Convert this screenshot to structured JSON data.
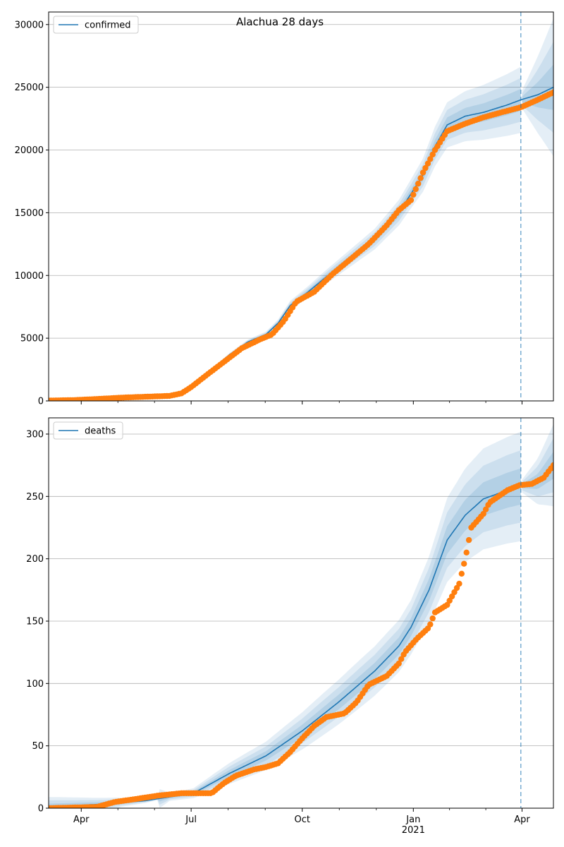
{
  "chart_data": [
    {
      "type": "line",
      "title": "Alachua 28 days",
      "legend": "confirmed",
      "legend_position": "top-left",
      "x_range_days": [
        0,
        418
      ],
      "x_ticks": [
        {
          "label": "Apr",
          "day": 27
        },
        {
          "label": "Jul",
          "day": 118
        },
        {
          "label": "Oct",
          "day": 210
        },
        {
          "label": "Jan",
          "day": 302
        },
        {
          "label": "Apr",
          "day": 392
        }
      ],
      "year_label": "2021",
      "ylim": [
        0,
        31000
      ],
      "y_ticks": [
        0,
        5000,
        10000,
        15000,
        20000,
        25000,
        30000
      ],
      "grid": true,
      "forecast_start_day": 391,
      "model_points": [
        [
          0,
          40
        ],
        [
          30,
          120
        ],
        [
          60,
          250
        ],
        [
          90,
          380
        ],
        [
          105,
          550
        ],
        [
          112,
          800
        ],
        [
          120,
          1350
        ],
        [
          135,
          2500
        ],
        [
          150,
          3700
        ],
        [
          165,
          4700
        ],
        [
          180,
          5300
        ],
        [
          190,
          6200
        ],
        [
          200,
          7600
        ],
        [
          215,
          8700
        ],
        [
          230,
          9900
        ],
        [
          250,
          11400
        ],
        [
          270,
          12900
        ],
        [
          290,
          15000
        ],
        [
          310,
          18000
        ],
        [
          320,
          20300
        ],
        [
          330,
          22000
        ],
        [
          345,
          22700
        ],
        [
          360,
          23000
        ],
        [
          380,
          23600
        ],
        [
          391,
          24000
        ],
        [
          405,
          24400
        ],
        [
          418,
          25000
        ]
      ],
      "band_spread": [
        [
          0,
          0
        ],
        [
          100,
          0.02
        ],
        [
          200,
          0.05
        ],
        [
          300,
          0.07
        ],
        [
          350,
          0.09
        ],
        [
          391,
          0.11
        ],
        [
          392,
          0.03
        ],
        [
          418,
          0.22
        ]
      ],
      "observed_points": [
        [
          0,
          30
        ],
        [
          20,
          60
        ],
        [
          40,
          150
        ],
        [
          60,
          260
        ],
        [
          80,
          330
        ],
        [
          100,
          400
        ],
        [
          110,
          600
        ],
        [
          118,
          1100
        ],
        [
          130,
          2000
        ],
        [
          145,
          3100
        ],
        [
          160,
          4200
        ],
        [
          175,
          4900
        ],
        [
          185,
          5300
        ],
        [
          195,
          6400
        ],
        [
          205,
          7900
        ],
        [
          220,
          8700
        ],
        [
          235,
          10100
        ],
        [
          250,
          11300
        ],
        [
          265,
          12500
        ],
        [
          280,
          14000
        ],
        [
          290,
          15200
        ],
        [
          300,
          16000
        ],
        [
          310,
          18200
        ],
        [
          320,
          20000
        ],
        [
          330,
          21500
        ],
        [
          345,
          22100
        ],
        [
          360,
          22600
        ],
        [
          375,
          23000
        ],
        [
          391,
          23400
        ],
        [
          405,
          24000
        ],
        [
          418,
          24600
        ]
      ],
      "xlabel": "",
      "ylabel": ""
    },
    {
      "type": "line",
      "title": "",
      "legend": "deaths",
      "legend_position": "top-left",
      "x_range_days": [
        0,
        418
      ],
      "x_ticks": [
        {
          "label": "Apr",
          "day": 27
        },
        {
          "label": "Jul",
          "day": 118
        },
        {
          "label": "Oct",
          "day": 210
        },
        {
          "label": "Jan",
          "day": 302
        },
        {
          "label": "Apr",
          "day": 392
        }
      ],
      "year_label": "2021",
      "ylim": [
        0,
        313
      ],
      "y_ticks": [
        0,
        50,
        100,
        150,
        200,
        250,
        300
      ],
      "grid": true,
      "forecast_start_day": 391,
      "model_points": [
        [
          0,
          1
        ],
        [
          40,
          3
        ],
        [
          80,
          6
        ],
        [
          120,
          12
        ],
        [
          150,
          28
        ],
        [
          180,
          42
        ],
        [
          210,
          62
        ],
        [
          240,
          85
        ],
        [
          270,
          110
        ],
        [
          290,
          130
        ],
        [
          300,
          145
        ],
        [
          315,
          175
        ],
        [
          330,
          215
        ],
        [
          345,
          235
        ],
        [
          360,
          248
        ],
        [
          380,
          255
        ],
        [
          391,
          258
        ],
        [
          405,
          262
        ],
        [
          418,
          275
        ]
      ],
      "band_spread": [
        [
          0,
          8
        ],
        [
          100,
          0.35
        ],
        [
          200,
          0.25
        ],
        [
          300,
          0.15
        ],
        [
          391,
          0.17
        ],
        [
          392,
          0.02
        ],
        [
          418,
          0.12
        ]
      ],
      "observed_points": [
        [
          0,
          0
        ],
        [
          40,
          1
        ],
        [
          55,
          5
        ],
        [
          70,
          7
        ],
        [
          90,
          10
        ],
        [
          110,
          12
        ],
        [
          135,
          12
        ],
        [
          145,
          20
        ],
        [
          155,
          26
        ],
        [
          170,
          31
        ],
        [
          180,
          33
        ],
        [
          190,
          36
        ],
        [
          200,
          45
        ],
        [
          210,
          56
        ],
        [
          220,
          66
        ],
        [
          230,
          73
        ],
        [
          245,
          76
        ],
        [
          255,
          85
        ],
        [
          265,
          99
        ],
        [
          280,
          106
        ],
        [
          290,
          116
        ],
        [
          295,
          125
        ],
        [
          305,
          136
        ],
        [
          315,
          145
        ],
        [
          320,
          157
        ],
        [
          330,
          163
        ],
        [
          340,
          180
        ],
        [
          345,
          200
        ],
        [
          350,
          225
        ],
        [
          360,
          236
        ],
        [
          365,
          245
        ],
        [
          380,
          255
        ],
        [
          390,
          259
        ],
        [
          400,
          260
        ],
        [
          410,
          265
        ],
        [
          418,
          275
        ]
      ],
      "xlabel": "",
      "ylabel": ""
    }
  ]
}
